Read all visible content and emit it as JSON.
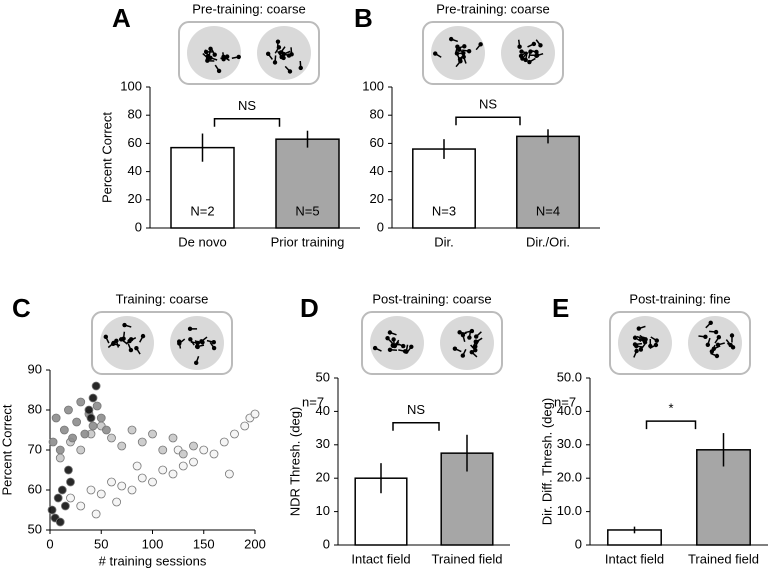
{
  "chart_data": [
    {
      "type": "bar",
      "panel": "A",
      "title": "Pre-training: coarse",
      "y_label": "Percent Correct",
      "categories": [
        "De novo",
        "Prior training"
      ],
      "values": [
        57,
        63
      ],
      "errors": [
        10,
        6
      ],
      "n_labels": [
        "N=2",
        "N=5"
      ],
      "colors": [
        "#ffffff",
        "#a6a6a6"
      ],
      "annotation": "NS",
      "ylim": [
        0,
        100
      ],
      "yticks": [
        0,
        20,
        40,
        60,
        80,
        100
      ]
    },
    {
      "type": "bar",
      "panel": "B",
      "title": "Pre-training: coarse",
      "categories": [
        "Dir.",
        "Dir./Ori."
      ],
      "values": [
        56,
        65
      ],
      "errors": [
        7,
        5
      ],
      "n_labels": [
        "N=3",
        "N=4"
      ],
      "colors": [
        "#ffffff",
        "#a6a6a6"
      ],
      "annotation": "NS",
      "ylim": [
        0,
        100
      ],
      "yticks": [
        0,
        20,
        40,
        60,
        80,
        100
      ]
    },
    {
      "type": "scatter",
      "panel": "C",
      "title": "Training: coarse",
      "y_label": "Percent Correct",
      "x_label": "# training sessions",
      "xlim": [
        0,
        200
      ],
      "xticks": [
        0,
        50,
        100,
        150,
        200
      ],
      "ylim": [
        50,
        90
      ],
      "yticks": [
        50,
        60,
        70,
        80,
        90
      ],
      "series": [
        {
          "color": "#f4f4f4",
          "x": [
            20,
            30,
            40,
            50,
            60,
            70,
            80,
            90,
            100,
            110,
            120,
            130,
            140,
            150,
            160,
            170,
            180,
            190,
            195,
            200,
            45,
            65,
            85,
            125,
            175
          ],
          "values": [
            58,
            56,
            60,
            59,
            62,
            61,
            60,
            63,
            62,
            65,
            64,
            66,
            67,
            70,
            69,
            72,
            74,
            76,
            78,
            79,
            54,
            57,
            66,
            70,
            64
          ]
        },
        {
          "color": "#c8c8c8",
          "x": [
            10,
            20,
            30,
            40,
            50,
            60,
            70,
            80,
            90,
            100,
            110,
            120,
            130,
            140
          ],
          "values": [
            68,
            72,
            70,
            74,
            76,
            73,
            71,
            75,
            72,
            74,
            70,
            73,
            69,
            71
          ]
        },
        {
          "color": "#8c8c8c",
          "x": [
            3,
            6,
            10,
            14,
            18,
            22,
            26,
            30,
            34,
            38,
            42,
            46,
            50,
            55
          ],
          "values": [
            72,
            78,
            70,
            75,
            80,
            73,
            77,
            82,
            74,
            79,
            76,
            81,
            78,
            75
          ]
        },
        {
          "color": "#111111",
          "x": [
            2,
            5,
            8,
            10,
            12,
            15,
            18,
            20,
            38,
            40,
            42,
            45
          ],
          "values": [
            55,
            53,
            58,
            52,
            60,
            56,
            65,
            62,
            80,
            78,
            83,
            86
          ]
        }
      ]
    },
    {
      "type": "bar",
      "panel": "D",
      "title": "Post-training: coarse",
      "y_label": "NDR Thresh. (deg)",
      "note": "n=7",
      "categories": [
        "Intact field",
        "Trained field"
      ],
      "values": [
        20,
        27.5
      ],
      "errors": [
        4.5,
        5.5
      ],
      "colors": [
        "#ffffff",
        "#a6a6a6"
      ],
      "annotation": "NS",
      "ylim": [
        0,
        50
      ],
      "yticks": [
        0,
        10,
        20,
        30,
        40,
        50
      ]
    },
    {
      "type": "bar",
      "panel": "E",
      "title": "Post-training: fine",
      "y_label": "Dir. Diff. Thresh. (deg)",
      "note": "n=7",
      "categories": [
        "Intact field",
        "Trained field"
      ],
      "values": [
        4.5,
        28.5
      ],
      "errors": [
        1,
        5
      ],
      "colors": [
        "#ffffff",
        "#a6a6a6"
      ],
      "annotation": "*",
      "ylim": [
        0,
        50
      ],
      "yticks": [
        0,
        {
          "value": 10,
          "label": "10.0"
        },
        {
          "value": 20,
          "label": "20.0"
        },
        {
          "value": 30,
          "label": "30.0"
        },
        {
          "value": 40,
          "label": "40.0"
        },
        {
          "value": 50,
          "label": "50.0"
        }
      ]
    }
  ]
}
